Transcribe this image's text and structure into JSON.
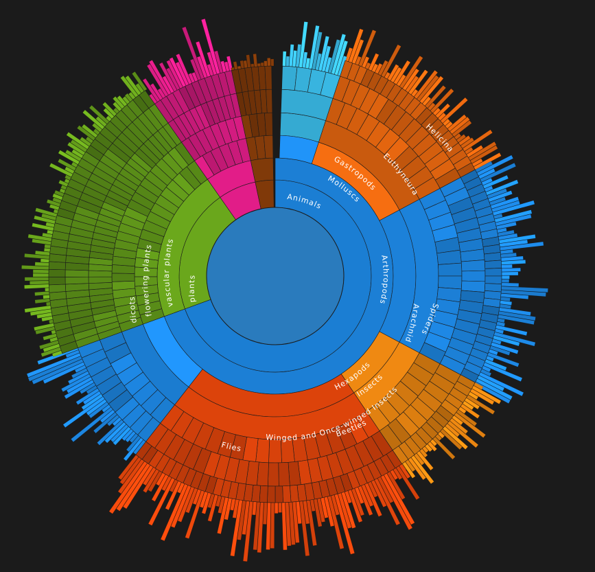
{
  "diagram": {
    "type": "sunburst",
    "root_color": "#2a7bbd",
    "colors": {
      "animals": "#1f8ff0",
      "molluscs": "#ee6a10",
      "arachnids": "#f18a12",
      "insects": "#e8470c",
      "plants": "#69a51c",
      "magenta": "#e81e8c",
      "brown": "#8a3e0a",
      "cyan": "#3cc1ef"
    },
    "labels": {
      "animals": "Animals",
      "molluscs": "Molluscs",
      "gastropods": "Gastropods",
      "euthyneura": "Euthyneura",
      "helicina": "Helicina",
      "arthropods": "Arthropods",
      "arachnids": "Arachnids",
      "spiders": "Spiders",
      "hexapods": "Hexapods",
      "insects": "Insects",
      "winged": "Winged and Once-winged Insects",
      "beetles": "Beetles",
      "flies": "Flies",
      "plants": "plants",
      "vascular": "vascular plants",
      "flowering": "flowering plants",
      "dicots": "dicots"
    }
  }
}
